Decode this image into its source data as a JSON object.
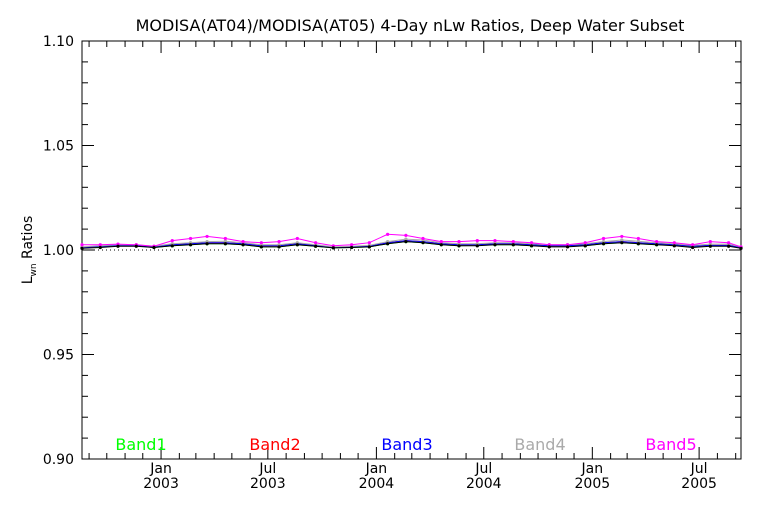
{
  "chart_data": {
    "type": "line",
    "title": "MODISA(AT04)/MODISA(AT05) 4-Day nLw Ratios, Deep Water Subset",
    "ylabel": "L",
    "ylabel_sub": "wn",
    "ylabel_rest": " Ratios",
    "ylim": [
      0.9,
      1.1
    ],
    "y_ticks": [
      "0.90",
      "0.95",
      "1.00",
      "1.05",
      "1.10"
    ],
    "xlim": [
      "2002-08-20",
      "2005-09-10"
    ],
    "x_ticks": [
      {
        "month": "Jan",
        "year": "2003",
        "date": "2003-01-01"
      },
      {
        "month": "Jul",
        "year": "2003",
        "date": "2003-07-01"
      },
      {
        "month": "Jan",
        "year": "2004",
        "date": "2004-01-01"
      },
      {
        "month": "Jul",
        "year": "2004",
        "date": "2004-07-01"
      },
      {
        "month": "Jan",
        "year": "2005",
        "date": "2005-01-01"
      },
      {
        "month": "Jul",
        "year": "2005",
        "date": "2005-07-01"
      }
    ],
    "reference_line": 1.0,
    "x": [
      "2002-08-20",
      "2002-09-20",
      "2002-10-20",
      "2002-11-20",
      "2002-12-20",
      "2003-01-20",
      "2003-02-20",
      "2003-03-20",
      "2003-04-20",
      "2003-05-20",
      "2003-06-20",
      "2003-07-20",
      "2003-08-20",
      "2003-09-20",
      "2003-10-20",
      "2003-11-20",
      "2003-12-20",
      "2004-01-20",
      "2004-02-20",
      "2004-03-20",
      "2004-04-20",
      "2004-05-20",
      "2004-06-20",
      "2004-07-20",
      "2004-08-20",
      "2004-09-20",
      "2004-10-20",
      "2004-11-20",
      "2004-12-20",
      "2005-01-20",
      "2005-02-20",
      "2005-03-20",
      "2005-04-20",
      "2005-05-20",
      "2005-06-20",
      "2005-07-20",
      "2005-08-20",
      "2005-09-10"
    ],
    "series": [
      {
        "name": "Band1",
        "color": "#00ff00",
        "values": [
          1.001,
          1.0015,
          1.002,
          1.002,
          1.0012,
          1.002,
          1.0025,
          1.003,
          1.003,
          1.0025,
          1.0015,
          1.0015,
          1.0025,
          1.0018,
          1.001,
          1.0012,
          1.0015,
          1.003,
          1.004,
          1.0035,
          1.0025,
          1.002,
          1.0022,
          1.0025,
          1.0025,
          1.002,
          1.0018,
          1.0018,
          1.002,
          1.003,
          1.0035,
          1.003,
          1.0025,
          1.0022,
          1.0015,
          1.002,
          1.002,
          1.001
        ]
      },
      {
        "name": "Band2",
        "color": "#ff0000",
        "values": [
          1.0012,
          1.0018,
          1.0022,
          1.0022,
          1.0015,
          1.0025,
          1.003,
          1.0035,
          1.0035,
          1.003,
          1.002,
          1.002,
          1.003,
          1.0022,
          1.0012,
          1.0015,
          1.0018,
          1.0035,
          1.0045,
          1.004,
          1.003,
          1.0025,
          1.0025,
          1.003,
          1.003,
          1.0025,
          1.002,
          1.002,
          1.0025,
          1.0035,
          1.004,
          1.0035,
          1.003,
          1.0025,
          1.0018,
          1.0022,
          1.0022,
          1.0012
        ]
      },
      {
        "name": "Band3",
        "color": "#0000ff",
        "values": [
          1.0012,
          1.0018,
          1.0022,
          1.0022,
          1.0015,
          1.0025,
          1.003,
          1.0035,
          1.0035,
          1.003,
          1.002,
          1.002,
          1.003,
          1.0022,
          1.0012,
          1.0015,
          1.0018,
          1.0035,
          1.0045,
          1.004,
          1.003,
          1.0025,
          1.0025,
          1.003,
          1.003,
          1.0025,
          1.002,
          1.002,
          1.0025,
          1.0035,
          1.004,
          1.0035,
          1.003,
          1.0025,
          1.0018,
          1.0022,
          1.0022,
          1.0012
        ]
      },
      {
        "name": "Band4",
        "color": "#aaaaaa",
        "values": [
          1.0015,
          1.002,
          1.0025,
          1.0025,
          1.0018,
          1.003,
          1.0035,
          1.004,
          1.0042,
          1.0035,
          1.0025,
          1.0025,
          1.0035,
          1.0025,
          1.0015,
          1.0018,
          1.0022,
          1.004,
          1.0052,
          1.0048,
          1.0035,
          1.003,
          1.003,
          1.0035,
          1.0035,
          1.003,
          1.0025,
          1.0025,
          1.003,
          1.004,
          1.0048,
          1.0042,
          1.0035,
          1.003,
          1.0022,
          1.0028,
          1.0028,
          1.0015
        ]
      },
      {
        "name": "Band5",
        "color": "#ff00ff",
        "values": [
          1.0025,
          1.0025,
          1.0028,
          1.0025,
          1.0018,
          1.0045,
          1.0055,
          1.0065,
          1.0055,
          1.004,
          1.0035,
          1.004,
          1.0055,
          1.0035,
          1.002,
          1.0025,
          1.0035,
          1.0075,
          1.007,
          1.0055,
          1.004,
          1.004,
          1.0045,
          1.0045,
          1.004,
          1.0035,
          1.0025,
          1.0025,
          1.0035,
          1.0055,
          1.0065,
          1.0055,
          1.004,
          1.0035,
          1.0025,
          1.004,
          1.0035,
          1.0015
        ]
      },
      {
        "name": "",
        "color": "#000000",
        "values": [
          1.0008,
          1.0012,
          1.0018,
          1.0018,
          1.0012,
          1.002,
          1.0025,
          1.003,
          1.003,
          1.0025,
          1.0015,
          1.0015,
          1.0025,
          1.0018,
          1.001,
          1.0012,
          1.0015,
          1.003,
          1.004,
          1.0035,
          1.0025,
          1.002,
          1.002,
          1.0025,
          1.0025,
          1.002,
          1.0015,
          1.0015,
          1.002,
          1.003,
          1.0035,
          1.003,
          1.0025,
          1.002,
          1.0012,
          1.0018,
          1.0018,
          1.0008
        ]
      }
    ],
    "legend": [
      "Band1",
      "Band2",
      "Band3",
      "Band4",
      "Band5"
    ],
    "legend_placement": "bottom inside plot",
    "grid": false
  }
}
